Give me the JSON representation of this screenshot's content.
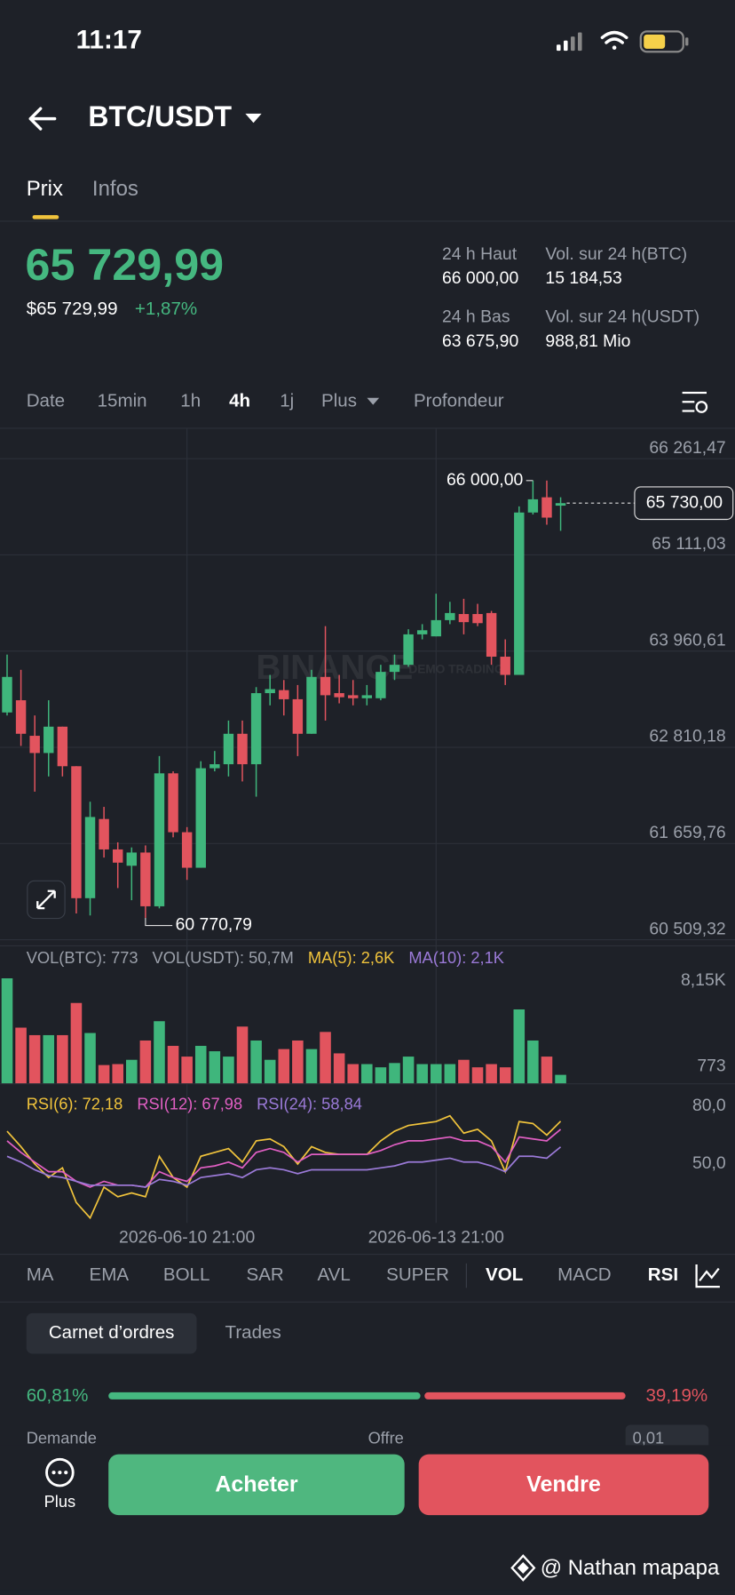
{
  "status_bar": {
    "time": "11:17"
  },
  "header": {
    "title": "BTC/USDT"
  },
  "tabs": [
    "Prix",
    "Infos"
  ],
  "ticker": {
    "price": "65 729,99",
    "price_usd": "$65 729,99",
    "change": "+1,87%",
    "stats": [
      {
        "label": "24 h Haut",
        "value": "66 000,00"
      },
      {
        "label": "Vol. sur 24 h(BTC)",
        "value": "15 184,53"
      },
      {
        "label": "24 h Bas",
        "value": "63 675,90"
      },
      {
        "label": "Vol. sur 24 h(USDT)",
        "value": "988,81 Mio"
      }
    ]
  },
  "timeframes": [
    "Date",
    "15min",
    "1h",
    "4h",
    "1j",
    "Plus",
    "Profondeur"
  ],
  "chart_data": [
    {
      "type": "candlestick",
      "watermark": [
        "BINANCE",
        "DEMO TRADING"
      ],
      "open": [
        63227,
        63373,
        62948,
        62742,
        63057,
        62584,
        61006,
        61953,
        61589,
        61394,
        61552,
        60909,
        62499,
        61795,
        61370,
        62560,
        62608,
        62972,
        62608,
        63458,
        63494,
        63385,
        62972,
        63652,
        63458,
        63433,
        63397,
        63397,
        63712,
        63797,
        64161,
        64137,
        64331,
        64404,
        64404,
        64416,
        63894,
        63676,
        65618,
        65800,
        65700
      ],
      "high": [
        63919,
        63737,
        63191,
        63373,
        63057,
        62584,
        62159,
        62098,
        61674,
        61613,
        61637,
        62705,
        62523,
        61856,
        62644,
        62766,
        63130,
        63130,
        63530,
        63676,
        63615,
        63555,
        63737,
        64259,
        63676,
        63615,
        63555,
        63797,
        63919,
        64222,
        64283,
        64647,
        64550,
        64586,
        64526,
        64441,
        64101,
        65691,
        66000,
        66000,
        65800
      ],
      "low": [
        63191,
        62827,
        62280,
        62462,
        62462,
        60824,
        60800,
        61492,
        61127,
        60982,
        60770.79,
        60885,
        61734,
        61225,
        61370,
        62523,
        62462,
        62402,
        62220,
        63312,
        63191,
        62705,
        62972,
        63130,
        63336,
        63312,
        63312,
        63373,
        63615,
        63773,
        64101,
        64137,
        64283,
        64161,
        64259,
        63797,
        63555,
        63676,
        65594,
        65472,
        65399
      ],
      "close": [
        63652,
        62972,
        62742,
        63057,
        62584,
        61006,
        61977,
        61589,
        61431,
        61552,
        60909,
        62499,
        61795,
        61370,
        62560,
        62608,
        62972,
        62608,
        63458,
        63506,
        63385,
        62972,
        63652,
        63433,
        63409,
        63397,
        63433,
        63712,
        63797,
        64161,
        64210,
        64331,
        64416,
        64307,
        64295,
        63894,
        63676,
        65618,
        65776,
        65557,
        65730
      ],
      "up_color": "#3fb67c",
      "down_color": "#e2545e",
      "ylim": [
        60509.32,
        66261.47
      ],
      "yticks": [
        {
          "value": 66261.47,
          "label": "66 261,47"
        },
        {
          "value": 65111.03,
          "label": "65 111,03"
        },
        {
          "value": 63960.61,
          "label": "63 960,61"
        },
        {
          "value": 62810.18,
          "label": "62 810,18"
        },
        {
          "value": 61659.76,
          "label": "61 659,76"
        },
        {
          "value": 60509.32,
          "label": "60 509,32"
        }
      ],
      "grid": true,
      "last_price": {
        "value": 65730,
        "label": "65 730,00"
      },
      "high_marker": {
        "value": 66000,
        "label": "66 000,00"
      },
      "low_marker": {
        "value": 60770.79,
        "label": "60 770,79"
      }
    },
    {
      "type": "bar",
      "legend": [
        {
          "text": "VOL(BTC): 773",
          "color": "#9ba0aa"
        },
        {
          "text": "VOL(USDT): 50,7M",
          "color": "#9ba0aa"
        },
        {
          "text": "MA(5): 2,6K",
          "color": "#f0c33c"
        },
        {
          "text": "MA(10): 2,1K",
          "color": "#9b7ad8"
        }
      ],
      "values": [
        9072,
        4831,
        4186,
        4186,
        4186,
        6952,
        4370,
        1614,
        1697,
        2065,
        3725,
        5385,
        3264,
        2342,
        3264,
        2802,
        2342,
        4923,
        3725,
        2065,
        2987,
        3725,
        2987,
        4462,
        2619,
        1697,
        1697,
        1420,
        1789,
        2342,
        1697,
        1697,
        1697,
        2065,
        1420,
        1697,
        1420,
        6399,
        3725,
        2342,
        773
      ],
      "ylim": [
        0,
        9250
      ],
      "yticks": [
        {
          "value": 8150,
          "label": "8,15K"
        },
        773
      ]
    },
    {
      "type": "line",
      "categories": [
        null,
        null,
        null,
        null,
        null,
        null,
        null,
        null,
        null,
        null,
        null,
        null,
        null,
        "2026-06-10 21:00",
        null,
        null,
        null,
        null,
        null,
        null,
        null,
        null,
        null,
        null,
        null,
        null,
        null,
        null,
        null,
        null,
        null,
        "2026-06-13 21:00",
        null,
        null,
        null,
        null,
        null,
        null,
        null,
        null,
        null
      ],
      "series": [
        {
          "name": "RSI(6): 72,18",
          "color": "#f0c33c",
          "values": [
            67,
            59,
            50,
            43,
            48,
            30,
            22,
            38,
            33,
            35,
            33,
            54,
            43,
            38,
            54,
            56,
            58,
            51,
            62,
            63,
            59,
            50,
            59,
            56,
            55,
            55,
            55,
            62,
            67,
            70,
            71,
            72,
            75,
            66,
            68,
            62,
            46,
            72,
            71,
            65,
            72.18
          ]
        },
        {
          "name": "RSI(12): 67,98",
          "color": "#e05fc3",
          "values": [
            62,
            56,
            51,
            46,
            46,
            41,
            38,
            41,
            39,
            39,
            38,
            46,
            43,
            41,
            48,
            49,
            51,
            48,
            56,
            58,
            56,
            51,
            55,
            55,
            55,
            55,
            55,
            57,
            60,
            62,
            62,
            63,
            64,
            62,
            62,
            59,
            51,
            64,
            63,
            62,
            67.98
          ]
        },
        {
          "name": "RSI(24): 58,84",
          "color": "#9b7ad8",
          "values": [
            54,
            51,
            47,
            44,
            43,
            41,
            39,
            39,
            39,
            39,
            38,
            42,
            41,
            39,
            43,
            44,
            45,
            43,
            47,
            48,
            47,
            45,
            47,
            47,
            47,
            47,
            47,
            48,
            49,
            51,
            51,
            52,
            53,
            51,
            51,
            49,
            46,
            54,
            54,
            53,
            58.84
          ]
        }
      ],
      "ylim": [
        20,
        90
      ],
      "yticks": [
        {
          "value": 80,
          "label": "80,0"
        },
        {
          "value": 50,
          "label": "50,0"
        }
      ]
    }
  ],
  "indicators": [
    "MA",
    "EMA",
    "BOLL",
    "SAR",
    "AVL",
    "SUPER",
    "VOL",
    "MACD",
    "RSI"
  ],
  "orderbook": {
    "tabs": [
      "Carnet d’ordres",
      "Trades"
    ],
    "bid_ratio": {
      "value": 60.81,
      "label": "60,81%"
    },
    "ask_ratio": {
      "value": 39.19,
      "label": "39,19%"
    },
    "columns": [
      "Demande",
      "Offre"
    ],
    "precision": "0,01"
  },
  "bottom_bar": {
    "more": "Plus",
    "buy": "Acheter",
    "sell": "Vendre"
  },
  "credit": "@ Nathan mapapa"
}
